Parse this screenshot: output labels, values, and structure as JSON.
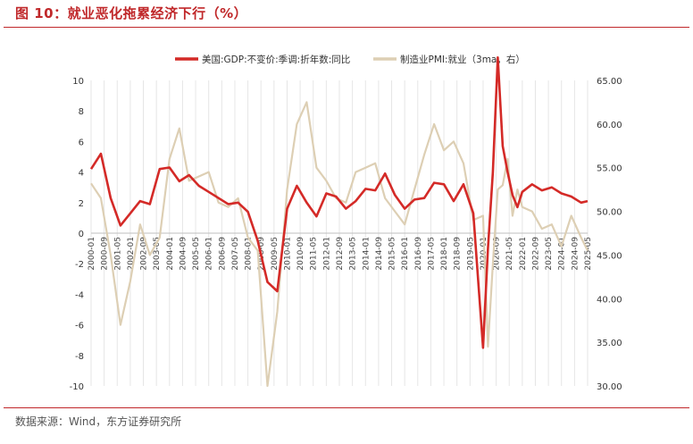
{
  "header": {
    "title": "图 10：就业恶化拖累经济下行（%）"
  },
  "footer": {
    "source": "数据来源：Wind，东方证券研究所"
  },
  "chart_data": {
    "type": "line",
    "legend": {
      "position": "top-center"
    },
    "series": [
      {
        "name": "美国:GDP:不变价:季调:折年数:同比",
        "axis": "left",
        "color": "#d42a27",
        "x": [
          "2000-01",
          "2000-07",
          "2001-01",
          "2001-07",
          "2002-01",
          "2002-07",
          "2003-01",
          "2003-07",
          "2004-01",
          "2004-07",
          "2005-01",
          "2005-07",
          "2006-01",
          "2006-07",
          "2007-01",
          "2007-07",
          "2008-01",
          "2008-07",
          "2009-01",
          "2009-07",
          "2010-01",
          "2010-07",
          "2011-01",
          "2011-07",
          "2012-01",
          "2012-07",
          "2013-01",
          "2013-07",
          "2014-01",
          "2014-07",
          "2015-01",
          "2015-07",
          "2016-01",
          "2016-07",
          "2017-01",
          "2017-07",
          "2018-01",
          "2018-07",
          "2019-01",
          "2019-07",
          "2020-01",
          "2020-04",
          "2020-07",
          "2020-10",
          "2021-01",
          "2021-04",
          "2021-07",
          "2021-10",
          "2022-01",
          "2022-07",
          "2023-01",
          "2023-07",
          "2024-01",
          "2024-07",
          "2025-01",
          "2025-05"
        ],
        "values": [
          4.2,
          5.2,
          2.3,
          0.5,
          1.3,
          2.1,
          1.9,
          4.2,
          4.3,
          3.4,
          3.8,
          3.1,
          2.7,
          2.3,
          1.9,
          2.0,
          1.4,
          -0.5,
          -3.2,
          -3.8,
          1.6,
          3.1,
          2.0,
          1.1,
          2.6,
          2.4,
          1.6,
          2.1,
          2.9,
          2.8,
          3.9,
          2.5,
          1.6,
          2.2,
          2.3,
          3.3,
          3.2,
          2.1,
          3.2,
          1.3,
          -7.5,
          -1.0,
          4.0,
          11.5,
          5.7,
          4.0,
          2.5,
          1.7,
          2.7,
          3.2,
          2.8,
          3.0,
          2.6,
          2.4,
          2.0,
          2.1
        ]
      },
      {
        "name": "制造业PMI:就业（3ma，右）",
        "axis": "right",
        "color": "#ddcfb4",
        "x": [
          "2000-01",
          "2000-07",
          "2001-01",
          "2001-07",
          "2002-01",
          "2002-07",
          "2003-01",
          "2003-07",
          "2004-01",
          "2004-07",
          "2005-01",
          "2005-07",
          "2006-01",
          "2006-07",
          "2007-01",
          "2007-07",
          "2008-01",
          "2008-07",
          "2009-01",
          "2009-07",
          "2010-01",
          "2010-07",
          "2011-01",
          "2011-07",
          "2012-01",
          "2012-07",
          "2013-01",
          "2013-07",
          "2014-01",
          "2014-07",
          "2015-01",
          "2015-07",
          "2016-01",
          "2016-07",
          "2017-01",
          "2017-07",
          "2018-01",
          "2018-07",
          "2019-01",
          "2019-07",
          "2020-01",
          "2020-04",
          "2020-07",
          "2020-10",
          "2021-01",
          "2021-04",
          "2021-07",
          "2021-10",
          "2022-01",
          "2022-07",
          "2023-01",
          "2023-07",
          "2024-01",
          "2024-07",
          "2025-01",
          "2025-05"
        ],
        "values": [
          53.2,
          51.5,
          45.0,
          37.0,
          42.0,
          48.5,
          45.0,
          47.0,
          56.0,
          59.5,
          53.5,
          54.0,
          54.5,
          51.0,
          50.5,
          51.5,
          47.0,
          45.5,
          30.0,
          38.5,
          52.5,
          60.0,
          62.5,
          55.0,
          53.5,
          51.5,
          51.0,
          54.5,
          55.0,
          55.5,
          51.5,
          50.0,
          48.5,
          52.5,
          56.5,
          60.0,
          57.0,
          58.0,
          55.5,
          49.0,
          49.5,
          34.5,
          44.0,
          52.5,
          53.0,
          56.0,
          49.5,
          52.5,
          50.5,
          50.0,
          48.0,
          48.5,
          46.0,
          49.5,
          47.0,
          45.5
        ]
      }
    ],
    "y_left": {
      "min": -10,
      "max": 10,
      "ticks": [
        "10",
        "8",
        "6",
        "4",
        "2",
        "0",
        "-2",
        "-4",
        "-6",
        "-8",
        "-10"
      ]
    },
    "y_right": {
      "min": 30,
      "max": 65,
      "ticks": [
        "65.00",
        "60.00",
        "55.00",
        "50.00",
        "45.00",
        "40.00",
        "35.00",
        "30.00"
      ]
    },
    "x_range": [
      "2000-01",
      "2025-05"
    ],
    "x_tick_labels": [
      "2000-01",
      "2000-09",
      "2001-05",
      "2002-01",
      "2002-09",
      "2003-05",
      "2004-01",
      "2004-09",
      "2005-05",
      "2006-01",
      "2006-09",
      "2007-05",
      "2008-01",
      "2008-09",
      "2009-05",
      "2010-01",
      "2010-09",
      "2011-05",
      "2012-01",
      "2012-09",
      "2013-05",
      "2014-01",
      "2014-09",
      "2015-05",
      "2016-01",
      "2016-09",
      "2017-05",
      "2018-01",
      "2018-09",
      "2019-05",
      "2020-01",
      "2020-09",
      "2021-05",
      "2022-01",
      "2022-09",
      "2023-05",
      "2024-01",
      "2024-09",
      "2025-05"
    ],
    "grid": {
      "vertical": true,
      "horizontal": false
    }
  }
}
